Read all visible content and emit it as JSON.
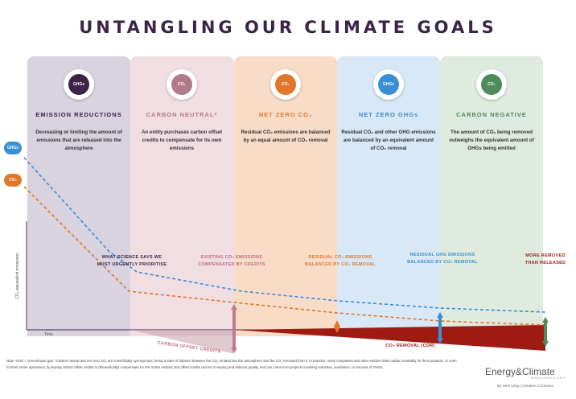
{
  "title": "UNTANGLING OUR CLIMATE GOALS",
  "columns": [
    {
      "heading": "EMISSION REDUCTIONS",
      "description": "Decreasing or limiting the amount of emissions that are released into the atmosphere",
      "icon_label": "GHGs",
      "bg": "#d9d2df",
      "heading_color": "#3b2448",
      "icon_color": "#3b2448"
    },
    {
      "heading": "CARBON NEUTRAL*",
      "description": "An entity purchases carbon offset credits to compensate for its own emissions",
      "icon_label": "CO₂",
      "bg": "#f1dee3",
      "heading_color": "#b5788b",
      "icon_color": "#b07a8a"
    },
    {
      "heading": "NET ZERO CO₂",
      "description": "Residual CO₂ emissions are balanced by an equal amount of CO₂ removal",
      "icon_label": "CO₂",
      "bg": "#f8dcc8",
      "heading_color": "#e07a2a",
      "icon_color": "#e0782a"
    },
    {
      "heading": "NET ZERO GHGs",
      "description": "Residual CO₂ and other GHG emissions are balanced by an equivalent amount of CO₂ removal",
      "icon_label": "GHGs",
      "bg": "#d8e8f6",
      "heading_color": "#3a8fd4",
      "icon_color": "#3a8fd4"
    },
    {
      "heading": "CARBON NEGATIVE",
      "description": "The amount of CO₂ being removed outweighs the equivalent amount of GHGs being emitted",
      "icon_label": "CO₂",
      "bg": "#e0ebdf",
      "heading_color": "#4e8a5a",
      "icon_color": "#4e8a5a"
    }
  ],
  "bubbles": {
    "ghg": "GHGs",
    "co2": "CO₂"
  },
  "bubble_colors": {
    "ghg": "#3a8fd4",
    "co2": "#e0782a"
  },
  "annotations": {
    "science": "WHAT SCIENCE SAYS WE MUST URGENTLY PRIORITISE",
    "existing": "EXISTING CO₂ EMISSIONS COMPENSATED BY CREDITS",
    "residual_co2": "RESIDUAL CO₂ EMISSIONS BALANCED BY CO₂ REMOVAL",
    "residual_ghg": "RESIDUAL GHG EMISSIONS BALANCED BY CO₂ REMOVAL",
    "more_removed": "MORE REMOVED THAN RELEASED",
    "offset_credits": "CARBON OFFSET CREDITS",
    "co2_removal": "CO₂ REMOVAL (CDR)"
  },
  "axis": {
    "y_label": "CO₂-equivalent emissions",
    "x_label": "Time"
  },
  "note": "Note: GHG = Greenhouse gas. *Carbon neutral and net zero CO₂ are scientifically synonymous, being a state of balance between the CO₂ emitted into the atmosphere and the CO₂ removed from it. In practice, many companies and other entities claim carbon neutrality for their products, or even for their entire operations, by buying carbon offset credits to (theoretically) compensate for the GHGs emitted. But offset credits can be of varying and dubious quality, and can come from projects involving reduction, avoidance, or removal of GHGs.",
  "logo": "Energy&Climate",
  "logo_sub": "INTELLIGENCE UNIT",
  "credit": "By John Lang  |  Creative Commons"
}
